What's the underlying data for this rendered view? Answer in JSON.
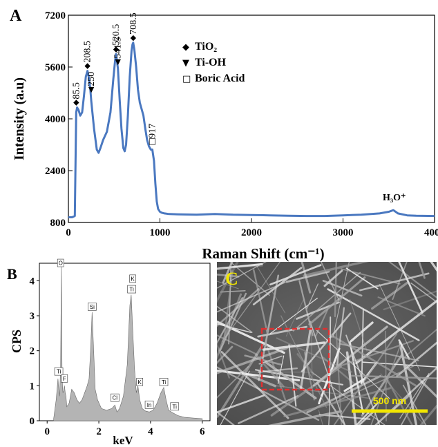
{
  "panel_a": {
    "letter": "A",
    "chart_data": {
      "type": "line",
      "xlabel": "Raman Shift (cm⁻¹)",
      "ylabel": "Intensity (a.u)",
      "xlim": [
        0,
        4000
      ],
      "ylim": [
        800,
        7200
      ],
      "x_ticks": [
        "0",
        "1000",
        "2000",
        "3000",
        "4000"
      ],
      "y_ticks": [
        "800",
        "2400",
        "4000",
        "5600",
        "7200"
      ],
      "color": "#4a78c0",
      "series": [
        {
          "x": [
            0,
            40,
            70,
            85,
            95,
            110,
            130,
            150,
            170,
            190,
            208,
            225,
            240,
            250,
            280,
            310,
            330,
            350,
            380,
            420,
            460,
            490,
            510,
            520,
            530,
            541,
            560,
            580,
            600,
            615,
            630,
            650,
            670,
            690,
            700,
            708,
            720,
            740,
            760,
            780,
            800,
            820,
            840,
            860,
            880,
            900,
            917,
            935,
            950,
            965,
            980,
            1000,
            1020,
            1050,
            1100,
            1200,
            1400,
            1600,
            1800,
            2000,
            2200,
            2400,
            2600,
            2800,
            3000,
            3200,
            3400,
            3500,
            3550,
            3600,
            3700,
            3800,
            4000
          ],
          "y": [
            960,
            960,
            1000,
            4200,
            4350,
            4280,
            4100,
            4200,
            4700,
            5300,
            5480,
            5250,
            4900,
            4550,
            3700,
            3050,
            2950,
            3100,
            3350,
            3600,
            4200,
            5200,
            5800,
            6000,
            5800,
            5550,
            4600,
            3700,
            3100,
            3000,
            3200,
            4100,
            5300,
            6100,
            6300,
            6350,
            6150,
            5600,
            4900,
            4500,
            4300,
            4100,
            3700,
            3350,
            3150,
            3050,
            3050,
            2700,
            2000,
            1450,
            1220,
            1130,
            1100,
            1080,
            1060,
            1050,
            1040,
            1060,
            1040,
            1030,
            1020,
            1010,
            1000,
            1000,
            1020,
            1040,
            1080,
            1130,
            1180,
            1080,
            1020,
            1010,
            1000
          ]
        }
      ],
      "peaks": [
        {
          "x": 85.5,
          "y": 4350,
          "label": "85.5",
          "marker": "◆"
        },
        {
          "x": 208.5,
          "y": 5480,
          "label": "208.5",
          "marker": "◆"
        },
        {
          "x": 250,
          "y": 4750,
          "label": "250",
          "marker": "▼"
        },
        {
          "x": 520.5,
          "y": 6000,
          "label": "520.5",
          "marker": "◆"
        },
        {
          "x": 541.5,
          "y": 5600,
          "label": "541.5",
          "marker": "▼"
        },
        {
          "x": 708.5,
          "y": 6350,
          "label": "708.5",
          "marker": "◆"
        },
        {
          "x": 917,
          "y": 3150,
          "label": "917",
          "marker": "□"
        }
      ],
      "legend": [
        {
          "marker": "◆",
          "label": "TiO₂"
        },
        {
          "marker": "▼",
          "label": "Ti-OH"
        },
        {
          "marker": "□",
          "label": "Boric Acid"
        }
      ],
      "annotations": [
        {
          "x": 3560,
          "y": 1400,
          "text": "H₃O⁺"
        }
      ]
    }
  },
  "panel_b": {
    "letter": "B",
    "chart_data": {
      "type": "area",
      "xlabel": "keV",
      "ylabel": "CPS",
      "xlim": [
        -0.3,
        6.3
      ],
      "ylim": [
        0,
        4.5
      ],
      "x_ticks": [
        "0",
        "2",
        "4",
        "6"
      ],
      "y_ticks": [
        "0",
        "1",
        "2",
        "3",
        "4"
      ],
      "fill": "#b4b4b4",
      "series": [
        {
          "x": [
            0.25,
            0.35,
            0.42,
            0.45,
            0.48,
            0.52,
            0.55,
            0.58,
            0.61,
            0.64,
            0.67,
            0.7,
            0.73,
            0.76,
            0.85,
            0.95,
            1.05,
            1.15,
            1.25,
            1.35,
            1.45,
            1.55,
            1.62,
            1.68,
            1.74,
            1.8,
            1.86,
            1.95,
            2.1,
            2.3,
            2.5,
            2.62,
            2.7,
            2.8,
            2.95,
            3.1,
            3.2,
            3.25,
            3.31,
            3.38,
            3.45,
            3.51,
            3.58,
            3.68,
            3.8,
            3.95,
            4.1,
            4.25,
            4.4,
            4.51,
            4.6,
            4.7,
            4.8,
            4.93,
            5.05,
            5.3,
            5.6,
            6.0
          ],
          "y": [
            0.05,
            0.6,
            1.2,
            0.9,
            0.7,
            1.5,
            4.45,
            1.2,
            0.8,
            0.85,
            1.0,
            0.8,
            0.7,
            0.4,
            0.5,
            0.9,
            0.8,
            0.6,
            0.5,
            0.6,
            0.8,
            1.0,
            1.2,
            2.0,
            3.1,
            2.0,
            0.9,
            0.6,
            0.35,
            0.3,
            0.35,
            0.45,
            0.25,
            0.35,
            0.7,
            1.6,
            3.3,
            3.6,
            2.6,
            1.5,
            0.8,
            1.0,
            0.6,
            0.35,
            0.28,
            0.25,
            0.3,
            0.5,
            0.8,
            0.95,
            0.6,
            0.3,
            0.25,
            0.2,
            0.15,
            0.1,
            0.08,
            0.06
          ]
        }
      ],
      "labels": [
        {
          "text": "O",
          "x": 0.52,
          "y": 4.4
        },
        {
          "text": "Ti",
          "x": 0.45,
          "y": 1.3
        },
        {
          "text": "F",
          "x": 0.67,
          "y": 1.1
        },
        {
          "text": "Si",
          "x": 1.74,
          "y": 3.15
        },
        {
          "text": "Cl",
          "x": 2.62,
          "y": 0.55
        },
        {
          "text": "K",
          "x": 3.31,
          "y": 3.95
        },
        {
          "text": "Ti",
          "x": 3.27,
          "y": 3.65
        },
        {
          "text": "K",
          "x": 3.58,
          "y": 1.0
        },
        {
          "text": "In",
          "x": 3.95,
          "y": 0.35
        },
        {
          "text": "Ti",
          "x": 4.51,
          "y": 1.0
        },
        {
          "text": "Ti",
          "x": 4.93,
          "y": 0.3
        }
      ]
    }
  },
  "panel_c": {
    "letter": "C",
    "scalebar_label": "500 nm",
    "image_desc_colors": {
      "background": "#5a5a5a",
      "highlight": "#e03030",
      "scalebar": "#f2e600"
    }
  }
}
